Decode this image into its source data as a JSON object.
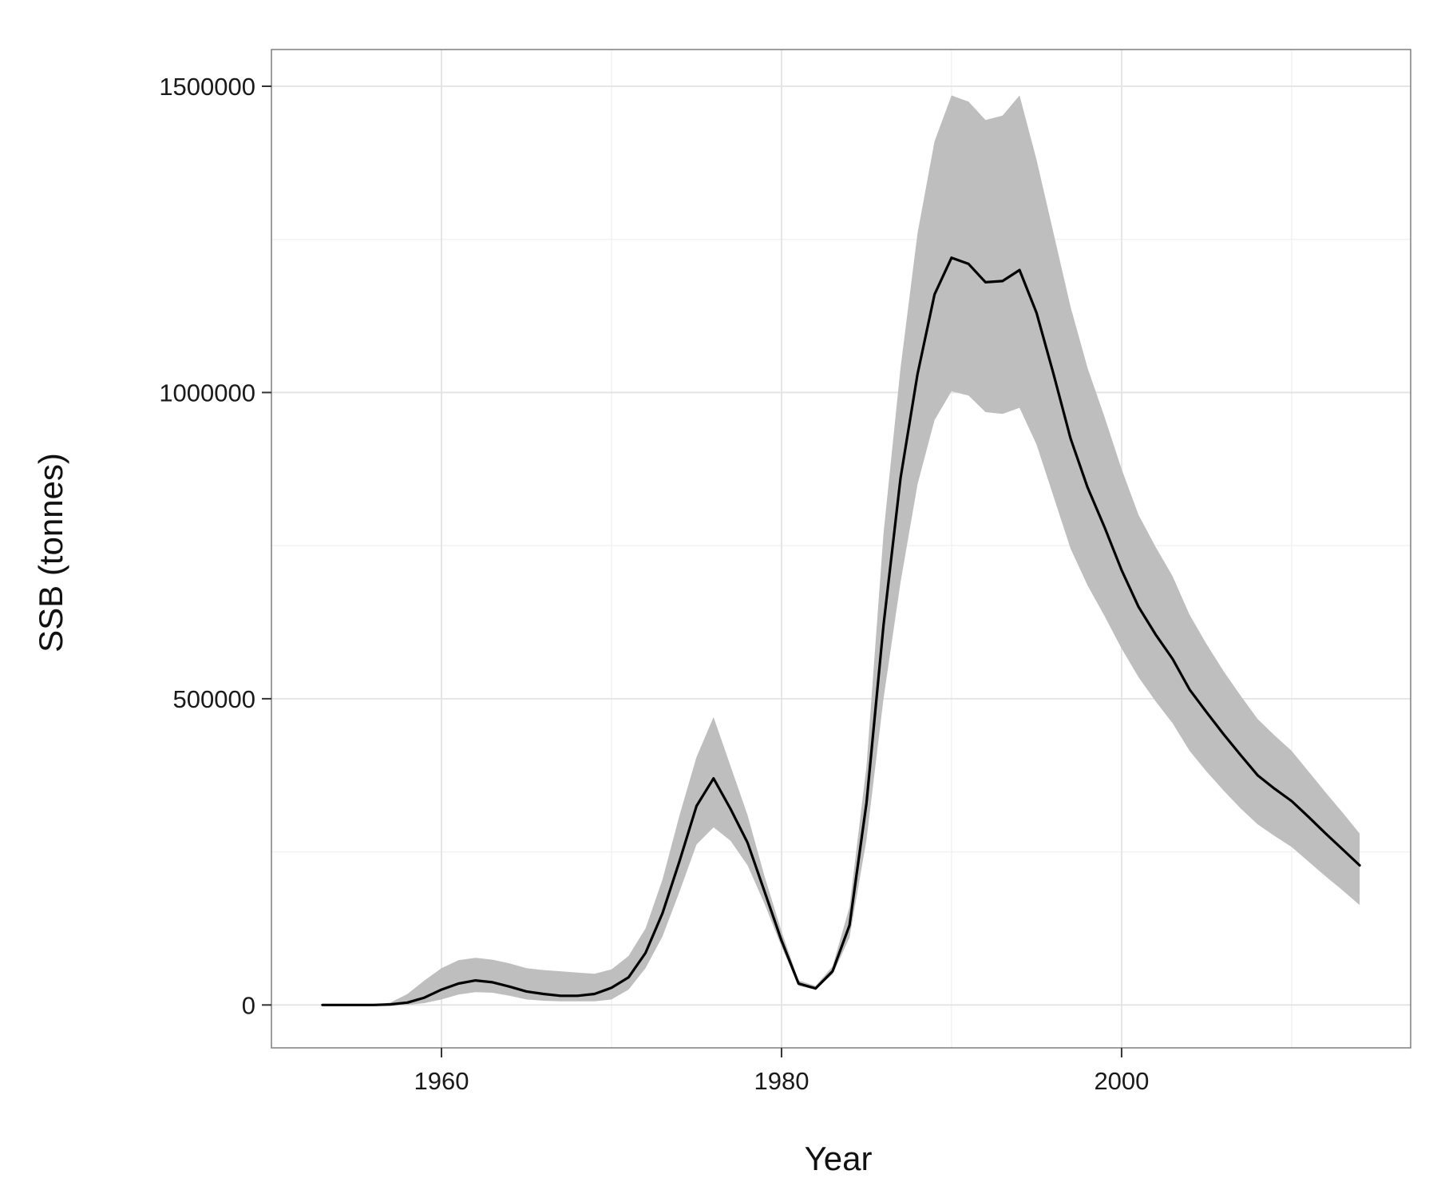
{
  "chart_data": {
    "type": "line",
    "xlabel": "Year",
    "ylabel": "SSB (tonnes)",
    "xlim": [
      1950,
      2017
    ],
    "ylim": [
      -70000,
      1560000
    ],
    "x_ticks": [
      1960,
      1980,
      2000
    ],
    "y_ticks": [
      0,
      500000,
      1000000,
      1500000
    ],
    "x_tick_labels": [
      "1960",
      "1980",
      "2000"
    ],
    "y_tick_labels": [
      "0",
      "500000",
      "1000000",
      "1500000"
    ],
    "grid": true,
    "legend": "none",
    "series": [
      {
        "type": "line",
        "color": "#000000",
        "x": [
          1953,
          1954,
          1955,
          1956,
          1957,
          1958,
          1959,
          1960,
          1961,
          1962,
          1963,
          1964,
          1965,
          1966,
          1967,
          1968,
          1969,
          1970,
          1971,
          1972,
          1973,
          1974,
          1975,
          1976,
          1977,
          1978,
          1979,
          1980,
          1981,
          1982,
          1983,
          1984,
          1985,
          1986,
          1987,
          1988,
          1989,
          1990,
          1991,
          1992,
          1993,
          1994,
          1995,
          1996,
          1997,
          1998,
          1999,
          2000,
          2001,
          2002,
          2003,
          2004,
          2005,
          2006,
          2007,
          2008,
          2009,
          2010,
          2011,
          2012,
          2013,
          2014
        ],
        "y": [
          0,
          0,
          0,
          0,
          1000,
          4000,
          12000,
          25000,
          35000,
          40000,
          37000,
          30000,
          22000,
          18000,
          15000,
          15000,
          18000,
          28000,
          45000,
          85000,
          150000,
          235000,
          325000,
          370000,
          320000,
          265000,
          185000,
          105000,
          35000,
          27000,
          55000,
          130000,
          330000,
          620000,
          860000,
          1030000,
          1160000,
          1220000,
          1210000,
          1180000,
          1182000,
          1200000,
          1130000,
          1030000,
          925000,
          845000,
          780000,
          710000,
          650000,
          605000,
          565000,
          515000,
          478000,
          442000,
          408000,
          375000,
          353000,
          333000,
          307000,
          280000,
          254000,
          228000
        ]
      },
      {
        "type": "band",
        "color": "#bebebe",
        "x": [
          1953,
          1954,
          1955,
          1956,
          1957,
          1958,
          1959,
          1960,
          1961,
          1962,
          1963,
          1964,
          1965,
          1966,
          1967,
          1968,
          1969,
          1970,
          1971,
          1972,
          1973,
          1974,
          1975,
          1976,
          1977,
          1978,
          1979,
          1980,
          1981,
          1982,
          1983,
          1984,
          1985,
          1986,
          1987,
          1988,
          1989,
          1990,
          1991,
          1992,
          1993,
          1994,
          1995,
          1996,
          1997,
          1998,
          1999,
          2000,
          2001,
          2002,
          2003,
          2004,
          2005,
          2006,
          2007,
          2008,
          2009,
          2010,
          2011,
          2012,
          2013,
          2014
        ],
        "upper": [
          0,
          0,
          0,
          0,
          4000,
          18000,
          40000,
          60000,
          73000,
          77000,
          74000,
          68000,
          60000,
          57000,
          55000,
          53000,
          51000,
          58000,
          80000,
          125000,
          205000,
          310000,
          405000,
          470000,
          390000,
          310000,
          210000,
          120000,
          40000,
          31000,
          63000,
          160000,
          390000,
          770000,
          1040000,
          1260000,
          1410000,
          1485000,
          1475000,
          1445000,
          1452000,
          1485000,
          1380000,
          1260000,
          1140000,
          1040000,
          960000,
          875000,
          800000,
          748000,
          700000,
          637000,
          589000,
          545000,
          505000,
          467000,
          440000,
          415000,
          381000,
          347000,
          314000,
          280000
        ],
        "lower": [
          0,
          0,
          0,
          0,
          0,
          0,
          3000,
          9000,
          17000,
          21000,
          20000,
          15000,
          9000,
          7000,
          6000,
          6000,
          6000,
          9000,
          25000,
          60000,
          112000,
          185000,
          262000,
          290000,
          268000,
          228000,
          165000,
          95000,
          31000,
          25000,
          50000,
          110000,
          270000,
          500000,
          690000,
          850000,
          955000,
          1002000,
          995000,
          968000,
          965000,
          975000,
          915000,
          830000,
          745000,
          685000,
          635000,
          582000,
          535000,
          496000,
          460000,
          415000,
          381000,
          350000,
          321000,
          295000,
          276000,
          258000,
          234000,
          210000,
          187000,
          163000
        ]
      }
    ]
  }
}
